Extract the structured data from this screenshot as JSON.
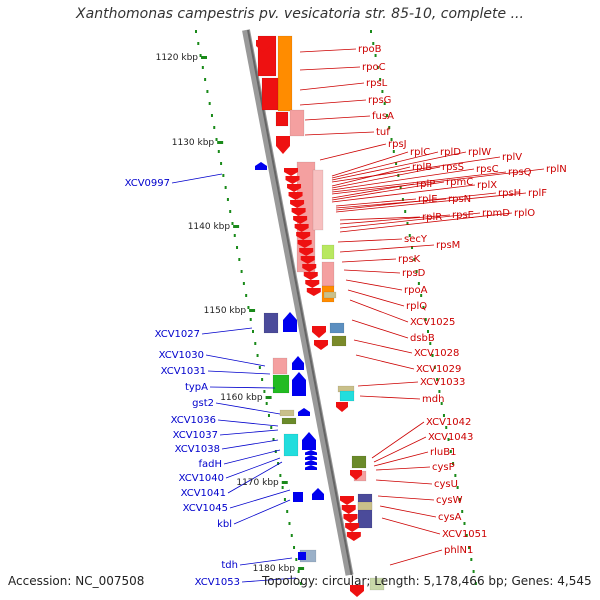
{
  "title": "Xanthomonas campestris pv. vesicatoria str. 85-10, complete ...",
  "footer": {
    "accession": "Accession: NC_007508",
    "topology": "Topology: circular; Length: 5,178,466 bp; Genes: 4,545"
  },
  "colors": {
    "backbone": "#888888",
    "right_label": "#cc0000",
    "left_label": "#0000cc",
    "tick": "#1a8a1a"
  },
  "kbp_labels": [
    "1120 kbp",
    "1130 kbp",
    "1140 kbp",
    "1150 kbp",
    "1160 kbp",
    "1170 kbp",
    "1180 kbp"
  ],
  "right_genes": [
    "rpoB",
    "rpoC",
    "rpsL",
    "rpsG",
    "fusA",
    "tuf",
    "rpsJ",
    "rplC",
    "rplD",
    "rplW",
    "rplV",
    "rplB",
    "rpsS",
    "rpsC",
    "rpsQ",
    "rplN",
    "rplP",
    "rpmC",
    "rplX",
    "rplE",
    "rpsN",
    "rpsH",
    "rplF",
    "rplR",
    "rpsE",
    "rpmD",
    "rplO",
    "secY",
    "rpsM",
    "rpsK",
    "rpsD",
    "rpoA",
    "rplQ",
    "XCV1025",
    "dsbB",
    "XCV1028",
    "XCV1029",
    "XCV1033",
    "mdh",
    "XCV1042",
    "XCV1043",
    "rluB1",
    "cysP",
    "cysU",
    "cysW",
    "cysA",
    "XCV1051",
    "phlN1"
  ],
  "left_genes": [
    "XCV0997",
    "XCV1027",
    "XCV1030",
    "XCV1031",
    "typA",
    "gst2",
    "XCV1036",
    "XCV1037",
    "XCV1038",
    "fadH",
    "XCV1040",
    "XCV1041",
    "XCV1045",
    "kbl",
    "tdh",
    "XCV1053"
  ]
}
